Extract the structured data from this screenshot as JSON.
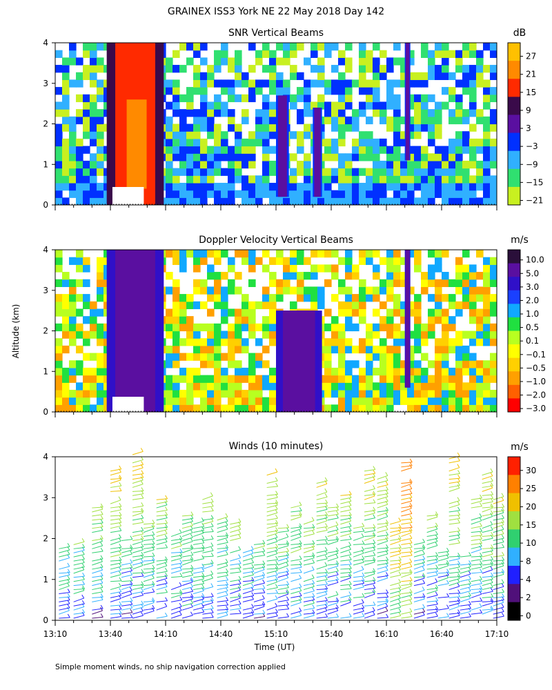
{
  "figure": {
    "title": "GRAINEX ISS3 York NE  22 May 2018 Day 142",
    "ylabel": "Altitude (km)",
    "xlabel": "Time (UT)",
    "footnote": "Simple moment winds, no ship navigation correction applied",
    "x_ticks": [
      "13:10",
      "13:40",
      "14:10",
      "14:40",
      "15:10",
      "15:40",
      "16:10",
      "16:40",
      "17:10"
    ],
    "y_ticks": [
      "0",
      "1",
      "2",
      "3",
      "4"
    ]
  },
  "chart_data": [
    {
      "type": "heatmap",
      "title": "SNR Vertical Beams",
      "x": [
        "13:10",
        "13:40",
        "14:10",
        "14:40",
        "15:10",
        "15:40",
        "16:10",
        "16:40",
        "17:10"
      ],
      "y_range_km": [
        0,
        4
      ],
      "colorbar": {
        "unit": "dB",
        "labels": [
          "27",
          "21",
          "15",
          "9",
          "3",
          "−3",
          "−9",
          "−15",
          "−21"
        ],
        "colors": [
          "#ffc000",
          "#ff8a00",
          "#ff2a00",
          "#3a0a4a",
          "#5a0fa0",
          "#0030ff",
          "#30b0ff",
          "#30e070",
          "#c8f020"
        ]
      },
      "features": [
        {
          "time_start": "13:38",
          "time_end": "14:09",
          "altitude_km": [
            0,
            4
          ],
          "approx_db": [
            9,
            27
          ]
        },
        {
          "time_start": "15:10",
          "time_end": "15:17",
          "altitude_km": [
            0.2,
            2.7
          ],
          "approx_db": [
            3,
            15
          ]
        },
        {
          "time_start": "15:30",
          "time_end": "15:35",
          "altitude_km": [
            0.2,
            2.4
          ],
          "approx_db": [
            3,
            15
          ]
        },
        {
          "time_start": "16:20",
          "time_end": "16:23",
          "altitude_km": [
            1.1,
            4
          ],
          "approx_db": [
            -3,
            9
          ]
        }
      ]
    },
    {
      "type": "heatmap",
      "title": "Doppler Velocity Vertical Beams",
      "x": [
        "13:10",
        "13:40",
        "14:10",
        "14:40",
        "15:10",
        "15:40",
        "16:10",
        "16:40",
        "17:10"
      ],
      "y_range_km": [
        0,
        4
      ],
      "colorbar": {
        "unit": "m/s",
        "labels": [
          "10.0",
          "5.0",
          "3.0",
          "2.0",
          "1.0",
          "0.5",
          "0.1",
          "−0.1",
          "−0.5",
          "−1.0",
          "−2.0",
          "−3.0"
        ],
        "colors": [
          "#2a0f3a",
          "#5a0fa0",
          "#3010c8",
          "#1a40ff",
          "#10a8ff",
          "#20e040",
          "#b8ff20",
          "#ffff00",
          "#ffd000",
          "#ffa000",
          "#ff6000",
          "#ff0000"
        ]
      },
      "features": [
        {
          "time_start": "13:38",
          "time_end": "14:09",
          "altitude_km": [
            0,
            4
          ],
          "approx_ms": [
            5,
            10
          ]
        },
        {
          "time_start": "15:10",
          "time_end": "15:35",
          "altitude_km": [
            0,
            2.5
          ],
          "approx_ms": [
            3,
            5
          ]
        },
        {
          "time_start": "16:20",
          "time_end": "16:23",
          "altitude_km": [
            0.6,
            4
          ],
          "approx_ms": [
            3,
            5
          ]
        }
      ]
    },
    {
      "type": "scatter",
      "title": "Winds (10 minutes)",
      "x": [
        "13:10",
        "13:40",
        "14:10",
        "14:40",
        "15:10",
        "15:40",
        "16:10",
        "16:40",
        "17:10"
      ],
      "y_range_km": [
        0,
        4
      ],
      "colorbar": {
        "unit": "m/s",
        "labels": [
          "30",
          "25",
          "20",
          "15",
          "10",
          "8",
          "4",
          "2",
          "0"
        ],
        "colors": [
          "#ff2000",
          "#ff8000",
          "#f0c000",
          "#a0e040",
          "#30d070",
          "#30b0ff",
          "#2020ff",
          "#50107a",
          "#000000"
        ]
      },
      "wind_columns_minutes_after_1310": [
        2,
        10,
        20,
        30,
        36,
        42,
        48,
        55,
        63,
        69,
        75,
        80,
        88,
        95,
        102,
        108,
        115,
        121,
        128,
        135,
        142,
        148,
        155,
        162,
        168,
        175,
        182,
        188,
        195,
        202,
        208,
        214,
        220,
        226,
        232,
        238
      ]
    }
  ]
}
